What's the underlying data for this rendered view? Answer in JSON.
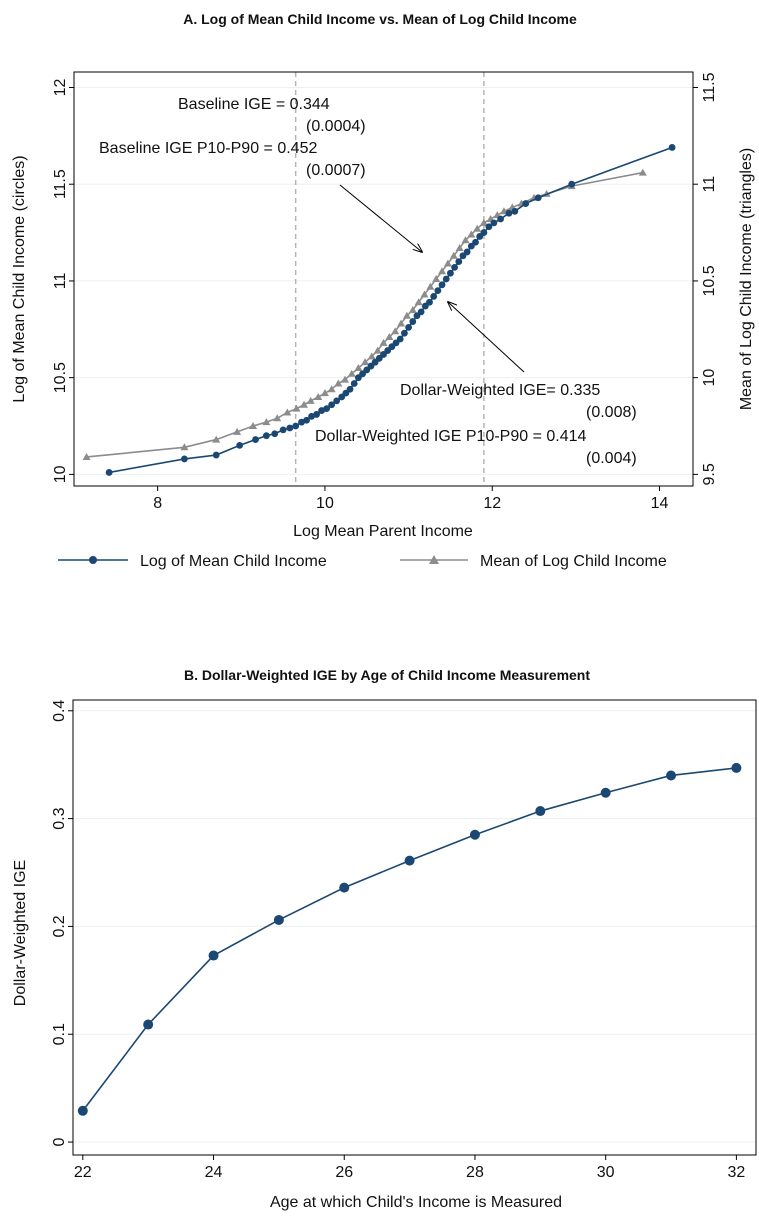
{
  "colors": {
    "navy": "#1b4872",
    "gray": "#8c8c8c",
    "grid": "#eaf0f4",
    "dashed": "#b4b4b4"
  },
  "chart_data": [
    {
      "type": "line",
      "title": "A. Log of Mean Child Income vs. Mean of Log Child Income",
      "xlabel": "Log Mean Parent Income",
      "ylabel": "Log of Mean Child Income (circles)",
      "y2label": "Mean of Log Child Income (triangles)",
      "xlim": [
        7.0,
        14.4
      ],
      "ylim": [
        9.94,
        12.08
      ],
      "y2lim": [
        9.44,
        11.58
      ],
      "xticks": [
        "8",
        "10",
        "12",
        "14"
      ],
      "yticks": [
        "10",
        "10.5",
        "11",
        "11.5",
        "12"
      ],
      "y2ticks": [
        "9.5",
        "10",
        "10.5",
        "11",
        "11.5"
      ],
      "grid": true,
      "legend_position": "bottom",
      "vlines": [
        9.65,
        11.9
      ],
      "annotations": {
        "baseline_igell": "Baseline IGE = 0.344",
        "baseline_se": "(0.0004)",
        "baseline_p10p90": "Baseline IGE P10-P90 = 0.452",
        "baseline_p10p90_se": "(0.0007)",
        "dollar_igell": "Dollar-Weighted IGE= 0.335",
        "dollar_se": "(0.008)",
        "dollar_p10p90": "Dollar-Weighted IGE P10-P90 = 0.414",
        "dollar_p10p90_se": "(0.004)"
      },
      "series": [
        {
          "name": "Log of Mean Child Income",
          "marker": "circle",
          "axis": "left",
          "points": [
            [
              7.42,
              10.01
            ],
            [
              8.32,
              10.08
            ],
            [
              8.7,
              10.1
            ],
            [
              8.98,
              10.15
            ],
            [
              9.17,
              10.18
            ],
            [
              9.3,
              10.2
            ],
            [
              9.4,
              10.21
            ],
            [
              9.5,
              10.23
            ],
            [
              9.58,
              10.24
            ],
            [
              9.65,
              10.25
            ],
            [
              9.72,
              10.27
            ],
            [
              9.78,
              10.28
            ],
            [
              9.84,
              10.3
            ],
            [
              9.9,
              10.31
            ],
            [
              9.96,
              10.33
            ],
            [
              10.02,
              10.34
            ],
            [
              10.08,
              10.36
            ],
            [
              10.14,
              10.38
            ],
            [
              10.2,
              10.4
            ],
            [
              10.25,
              10.42
            ],
            [
              10.3,
              10.44
            ],
            [
              10.35,
              10.47
            ],
            [
              10.4,
              10.5
            ],
            [
              10.45,
              10.52
            ],
            [
              10.5,
              10.54
            ],
            [
              10.55,
              10.56
            ],
            [
              10.6,
              10.58
            ],
            [
              10.65,
              10.6
            ],
            [
              10.7,
              10.62
            ],
            [
              10.75,
              10.64
            ],
            [
              10.8,
              10.66
            ],
            [
              10.85,
              10.68
            ],
            [
              10.9,
              10.7
            ],
            [
              10.95,
              10.73
            ],
            [
              11.0,
              10.76
            ],
            [
              11.05,
              10.79
            ],
            [
              11.1,
              10.82
            ],
            [
              11.15,
              10.84
            ],
            [
              11.2,
              10.87
            ],
            [
              11.25,
              10.89
            ],
            [
              11.3,
              10.92
            ],
            [
              11.35,
              10.95
            ],
            [
              11.4,
              10.98
            ],
            [
              11.45,
              11.01
            ],
            [
              11.5,
              11.04
            ],
            [
              11.55,
              11.07
            ],
            [
              11.6,
              11.1
            ],
            [
              11.65,
              11.13
            ],
            [
              11.7,
              11.15
            ],
            [
              11.75,
              11.18
            ],
            [
              11.8,
              11.2
            ],
            [
              11.85,
              11.23
            ],
            [
              11.9,
              11.25
            ],
            [
              11.96,
              11.28
            ],
            [
              12.02,
              11.3
            ],
            [
              12.1,
              11.32
            ],
            [
              12.2,
              11.35
            ],
            [
              12.27,
              11.36
            ],
            [
              12.4,
              11.4
            ],
            [
              12.55,
              11.43
            ],
            [
              12.95,
              11.5
            ],
            [
              14.15,
              11.69
            ]
          ]
        },
        {
          "name": "Mean of Log Child Income",
          "marker": "triangle",
          "axis": "right",
          "points": [
            [
              7.15,
              9.59
            ],
            [
              8.32,
              9.64
            ],
            [
              8.7,
              9.68
            ],
            [
              8.95,
              9.72
            ],
            [
              9.14,
              9.75
            ],
            [
              9.3,
              9.77
            ],
            [
              9.43,
              9.79
            ],
            [
              9.55,
              9.82
            ],
            [
              9.66,
              9.84
            ],
            [
              9.75,
              9.86
            ],
            [
              9.83,
              9.88
            ],
            [
              9.92,
              9.9
            ],
            [
              10.0,
              9.92
            ],
            [
              10.08,
              9.94
            ],
            [
              10.16,
              9.97
            ],
            [
              10.24,
              9.99
            ],
            [
              10.32,
              10.02
            ],
            [
              10.4,
              10.05
            ],
            [
              10.48,
              10.08
            ],
            [
              10.56,
              10.11
            ],
            [
              10.63,
              10.14
            ],
            [
              10.7,
              10.18
            ],
            [
              10.77,
              10.21
            ],
            [
              10.84,
              10.24
            ],
            [
              10.91,
              10.28
            ],
            [
              10.98,
              10.32
            ],
            [
              11.05,
              10.35
            ],
            [
              11.12,
              10.39
            ],
            [
              11.19,
              10.43
            ],
            [
              11.26,
              10.47
            ],
            [
              11.33,
              10.51
            ],
            [
              11.4,
              10.55
            ],
            [
              11.47,
              10.59
            ],
            [
              11.54,
              10.63
            ],
            [
              11.61,
              10.67
            ],
            [
              11.68,
              10.71
            ],
            [
              11.75,
              10.74
            ],
            [
              11.82,
              10.77
            ],
            [
              11.9,
              10.8
            ],
            [
              11.98,
              10.82
            ],
            [
              12.06,
              10.84
            ],
            [
              12.14,
              10.86
            ],
            [
              12.24,
              10.88
            ],
            [
              12.35,
              10.9
            ],
            [
              12.5,
              10.93
            ],
            [
              12.65,
              10.95
            ],
            [
              12.95,
              10.99
            ],
            [
              13.8,
              11.06
            ]
          ]
        }
      ]
    },
    {
      "type": "line",
      "title": "B. Dollar-Weighted IGE by Age of Child Income Measurement",
      "xlabel": "Age at which Child's Income is Measured",
      "ylabel": "Dollar-Weighted IGE",
      "x": [
        22,
        23,
        24,
        25,
        26,
        27,
        28,
        29,
        30,
        31,
        32
      ],
      "values": [
        0.029,
        0.109,
        0.173,
        0.206,
        0.236,
        0.261,
        0.285,
        0.307,
        0.324,
        0.34,
        0.347
      ],
      "xlim": [
        21.85,
        32.3
      ],
      "ylim": [
        -0.012,
        0.41
      ],
      "xticks": [
        "22",
        "24",
        "26",
        "28",
        "30",
        "32"
      ],
      "yticks": [
        "0",
        "0.1",
        "0.2",
        "0.3",
        "0.4"
      ],
      "grid": true
    }
  ]
}
